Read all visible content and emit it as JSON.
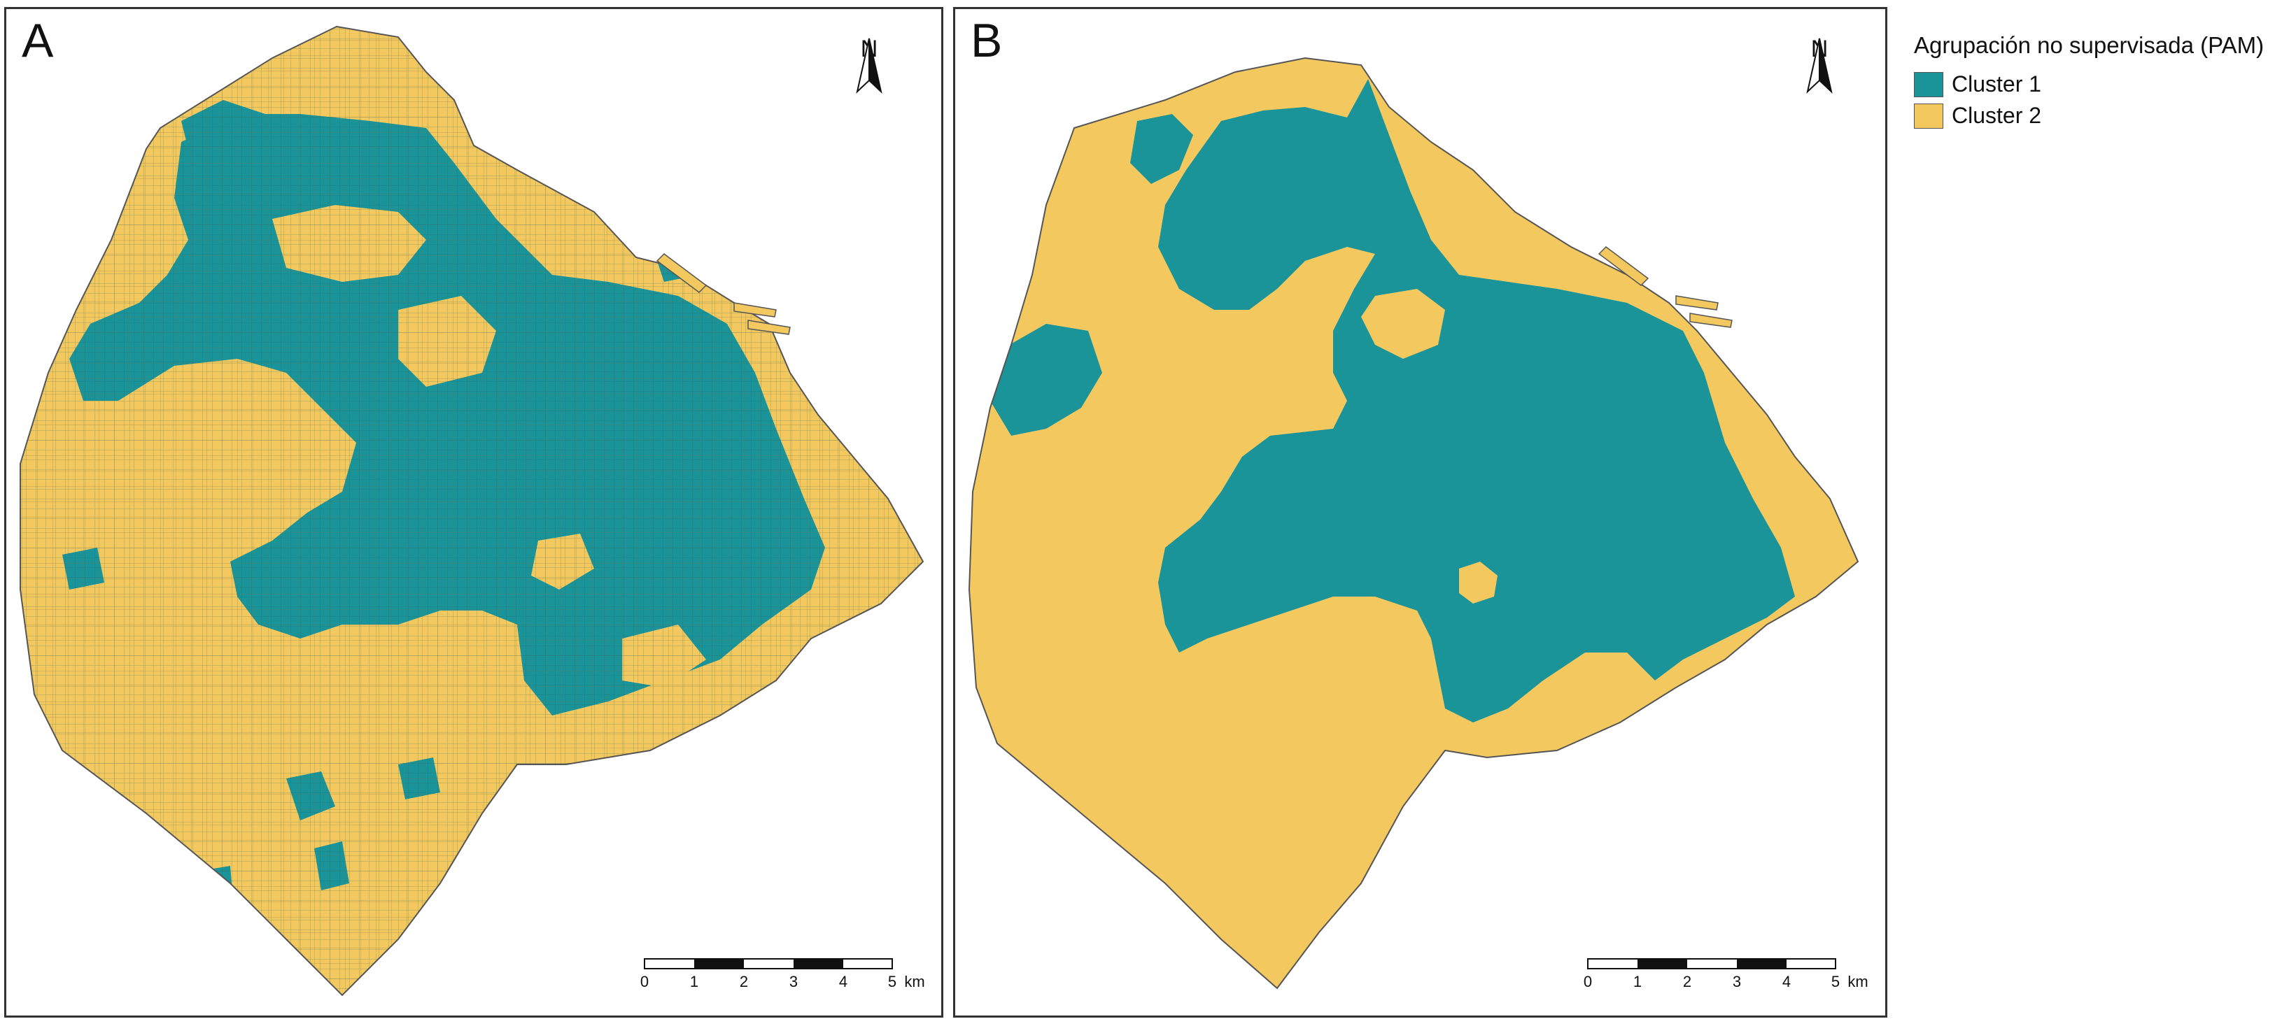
{
  "panels": [
    {
      "letter": "A"
    },
    {
      "letter": "B"
    }
  ],
  "north_label": "N",
  "scale": {
    "ticks": [
      "0",
      "1",
      "2",
      "3",
      "4",
      "5"
    ],
    "unit": "km"
  },
  "legend": {
    "title": "Agrupación no supervisada (PAM)",
    "items": [
      {
        "label": "Cluster 1",
        "color": "#1a9399"
      },
      {
        "label": "Cluster 2",
        "color": "#f3c95f"
      }
    ]
  },
  "colors": {
    "cluster1": "#1a9399",
    "cluster2": "#f3c95f",
    "boundary": "#555555"
  }
}
